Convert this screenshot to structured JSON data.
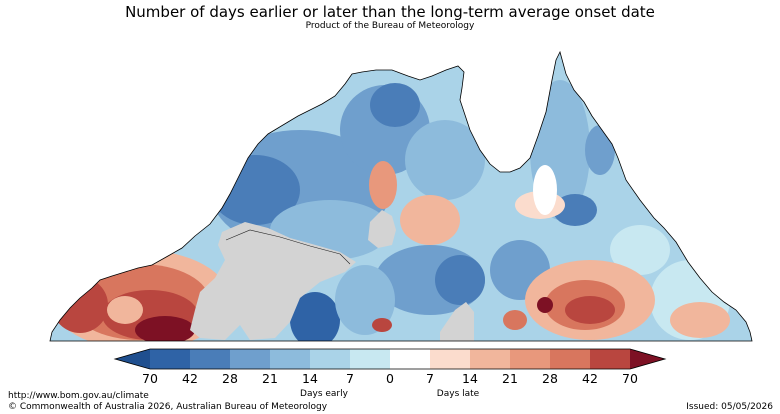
{
  "header": {
    "title": "Number of days earlier or later than the long-term average onset date",
    "subtitle": "Product of the Bureau of Meteorology"
  },
  "colors": {
    "early_70": "#1f4f8f",
    "early_42": "#2f63a6",
    "early_28": "#4a7db8",
    "early_21": "#6f9fcd",
    "early_14": "#8dbbdc",
    "early_7": "#aad3e8",
    "early_0": "#c8e8f1",
    "late_0": "#ffffff",
    "late_7": "#fbdccd",
    "late_14": "#f1b69c",
    "late_21": "#e8987c",
    "late_28": "#d8765e",
    "late_42": "#b9463f",
    "late_70": "#7d1124",
    "no_data": "#d3d3d3"
  },
  "legend": {
    "ticks": [
      "70",
      "42",
      "28",
      "21",
      "14",
      "7",
      "0",
      "7",
      "14",
      "21",
      "28",
      "42",
      "70"
    ],
    "early_label": "Days early",
    "late_label": "Days late"
  },
  "footer": {
    "url": "http://www.bom.gov.au/climate",
    "copyright": "© Commonwealth of Australia 2026, Australian Bureau of Meteorology",
    "issued": "Issued: 05/05/2026"
  }
}
